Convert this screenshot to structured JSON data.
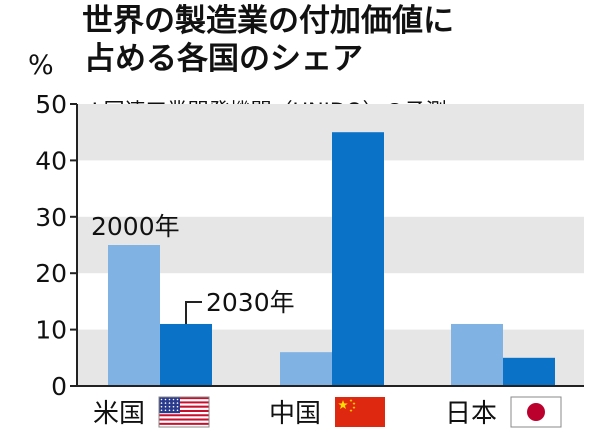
{
  "chart_data": {
    "type": "bar",
    "title_lines": [
      "世界の製造業の付加価値に",
      "占める各国のシェア"
    ],
    "source": "※国連工業開発機関（UNIDO）の予測",
    "ylabel": "%",
    "ylim": [
      0,
      50
    ],
    "yticks": [
      0,
      10,
      20,
      30,
      40,
      50
    ],
    "categories": [
      "米国",
      "中国",
      "日本"
    ],
    "category_flags": [
      "us-flag-icon",
      "china-flag-icon",
      "japan-flag-icon"
    ],
    "series": [
      {
        "name": "2000年",
        "values": [
          25,
          6,
          11
        ],
        "color": "#80b3e3"
      },
      {
        "name": "2030年",
        "values": [
          11,
          45,
          5
        ],
        "color": "#0a73c8"
      }
    ],
    "grid": "horizontal bands",
    "band_color": "#e6e6e6",
    "legend": "inline annotations over 米国 bars"
  }
}
